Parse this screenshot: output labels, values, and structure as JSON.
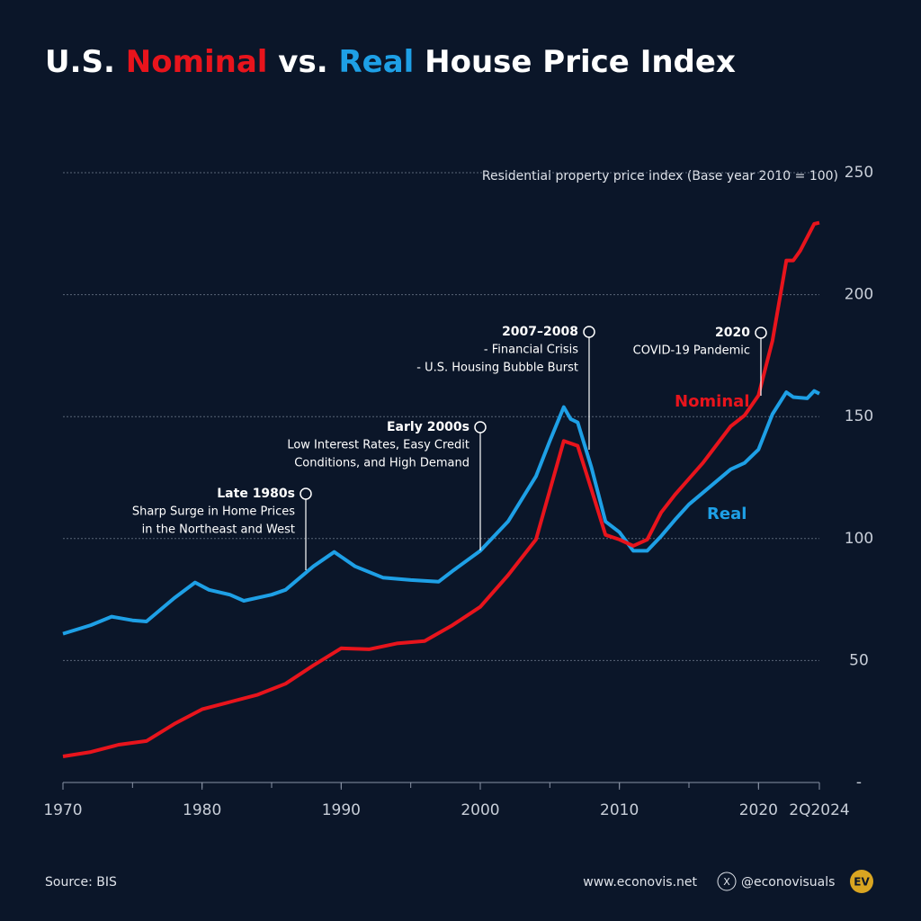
{
  "chart_data": {
    "type": "line",
    "title_parts": [
      "U.S. ",
      "Nominal",
      " vs. ",
      "Real",
      " House Price Index"
    ],
    "y_label": "Residential property price index (Base year 2010 = 100)",
    "xlim": [
      1970,
      2024.375
    ],
    "xticks": [
      1970,
      1980,
      1990,
      2000,
      2010,
      2020,
      {
        "value": 2024.375,
        "label": "2Q2024"
      }
    ],
    "ylim": [
      0,
      250
    ],
    "yticks": [
      {
        "value": 0,
        "label": "-"
      },
      50,
      100,
      150,
      200,
      250
    ],
    "grid": true,
    "series": [
      {
        "name": "Nominal",
        "color": "#e8141c",
        "x": [
          1970,
          1972,
          1974,
          1976,
          1978,
          1980,
          1982,
          1984,
          1986,
          1988,
          1990,
          1992,
          1994,
          1996,
          1998,
          2000,
          2002,
          2004,
          2006,
          2007,
          2008,
          2009,
          2010,
          2011,
          2012,
          2013,
          2014,
          2016,
          2018,
          2019,
          2020,
          2021,
          2022,
          2022.5,
          2023,
          2024,
          2024.375
        ],
        "values": [
          10.7,
          12.5,
          15.5,
          17,
          24,
          30,
          33,
          36,
          40.5,
          48,
          55,
          54.6,
          57,
          58,
          64.5,
          72,
          85,
          99.6,
          140,
          138,
          120,
          101.5,
          99.6,
          97,
          99.6,
          110.7,
          118,
          131,
          146,
          150.5,
          158.7,
          181,
          214,
          214,
          218,
          229,
          229.5
        ]
      },
      {
        "name": "Real",
        "color": "#1ea0e6",
        "x": [
          1970,
          1972,
          1973.5,
          1975,
          1976,
          1978,
          1979.5,
          1980.5,
          1982,
          1983,
          1985,
          1986,
          1988,
          1989.5,
          1991,
          1993,
          1995,
          1997,
          1998,
          2000,
          2002,
          2004,
          2005,
          2006,
          2006.5,
          2007,
          2008,
          2009,
          2010,
          2011,
          2012,
          2013,
          2014,
          2015,
          2016,
          2018,
          2019,
          2020,
          2021,
          2022,
          2022.5,
          2023.5,
          2024,
          2024.375
        ],
        "values": [
          61,
          64.5,
          68,
          66.5,
          66,
          75.6,
          82,
          79,
          77,
          74.5,
          77,
          79,
          88.6,
          94.5,
          88.6,
          84,
          83,
          82.3,
          86.7,
          95,
          107,
          125.5,
          140,
          153.9,
          149,
          147.6,
          129,
          107,
          102.6,
          95,
          95,
          101,
          107.7,
          114,
          118.8,
          128.4,
          131,
          136.5,
          151,
          160,
          158,
          157.5,
          160.5,
          159.4
        ]
      }
    ],
    "annotations": [
      {
        "title": "Late 1980s",
        "lines": [
          "Sharp Surge in Home Prices",
          "in the Northeast and West"
        ]
      },
      {
        "title": "Early 2000s",
        "lines": [
          "Low Interest Rates, Easy Credit",
          "Conditions, and High Demand"
        ]
      },
      {
        "title": "2007–2008",
        "lines": [
          "- Financial Crisis",
          "- U.S. Housing Bubble Burst"
        ]
      },
      {
        "title": "2020",
        "lines": [
          "COVID-19 Pandemic"
        ]
      }
    ],
    "source": "Source: BIS",
    "website": "www.econovis.net",
    "handle": "@econovisuals",
    "logo": "EV"
  }
}
